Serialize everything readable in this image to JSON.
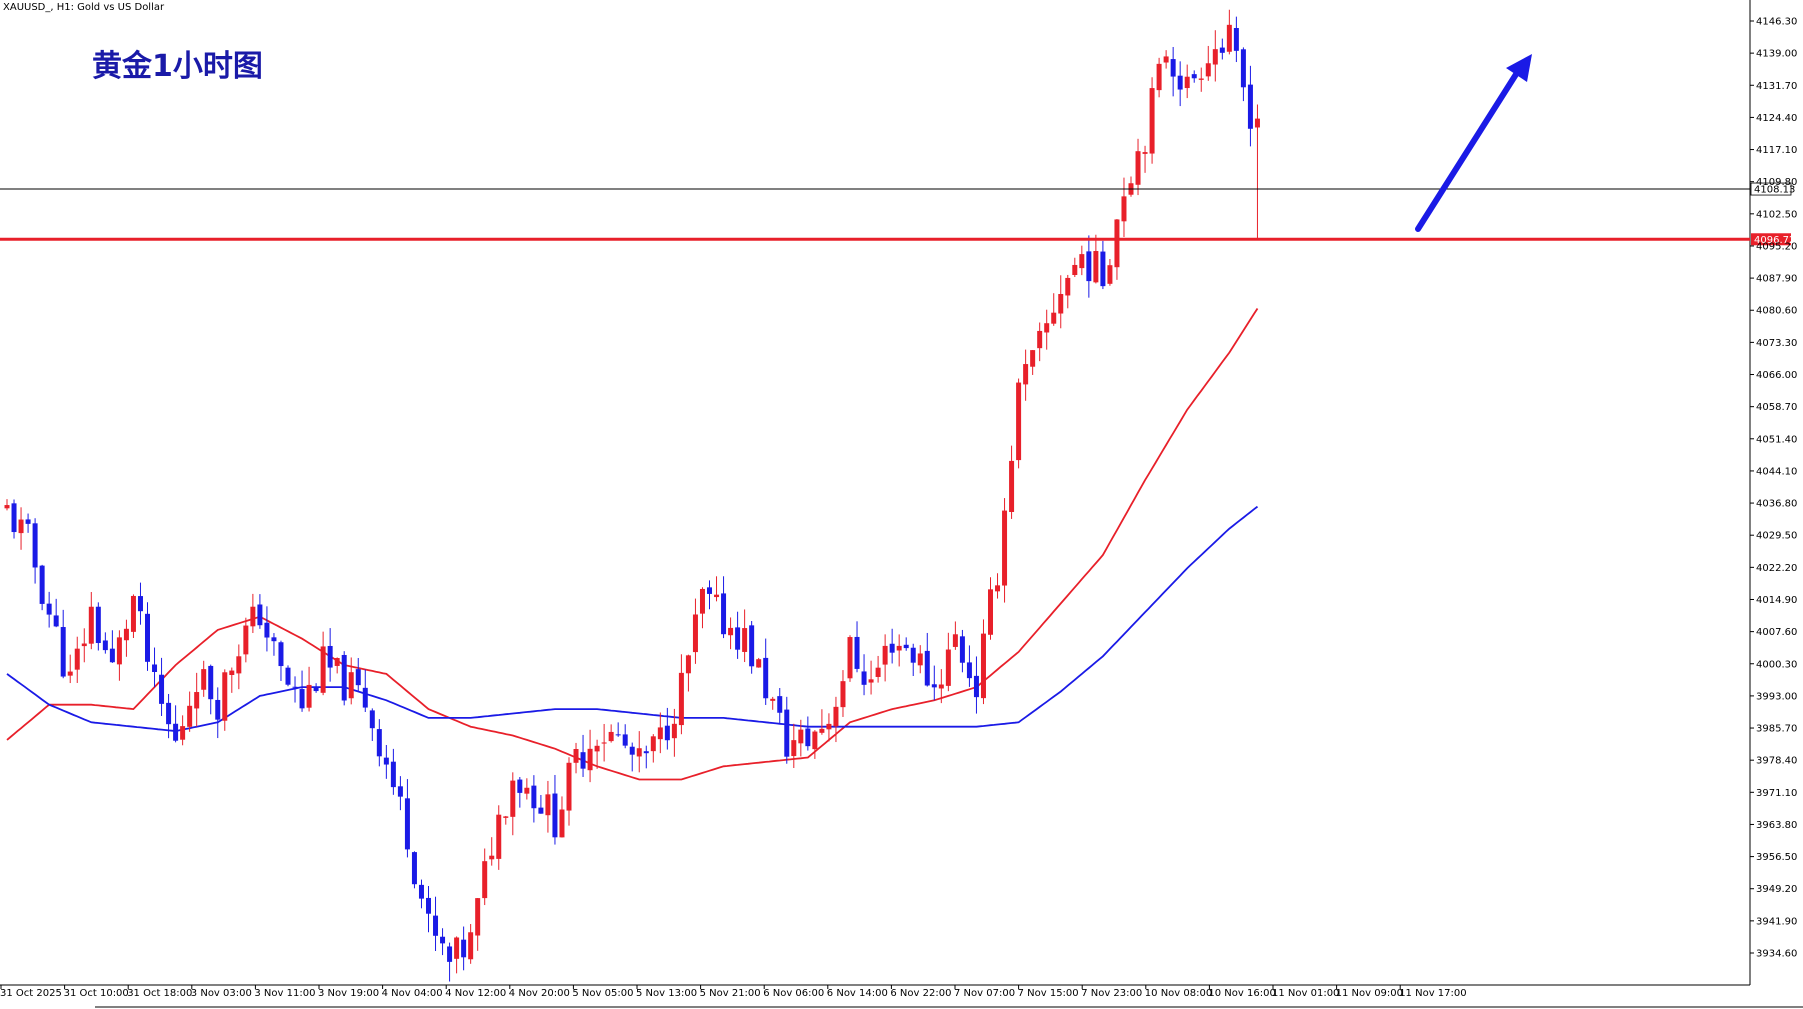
{
  "header": {
    "symbol_line": "XAUUSD_, H1:  Gold vs US Dollar",
    "chart_title": "黄金1小时图"
  },
  "colors": {
    "bull_candle": "#e8202a",
    "bear_candle": "#1a1ae6",
    "ma_fast": "#e8202a",
    "ma_slow": "#1a1ae6",
    "support_line": "#e8202a",
    "current_line": "#000000",
    "arrow": "#1a1ae6",
    "title": "#1a1aa8"
  },
  "chart_data": {
    "type": "candlestick",
    "timeframe": "H1",
    "ylim": [
      3929.0,
      4150.5
    ],
    "yticks": [
      "4146.30",
      "4139.00",
      "4131.70",
      "4124.40",
      "4117.10",
      "4109.80",
      "4102.50",
      "4095.20",
      "4087.90",
      "4080.60",
      "4073.30",
      "4066.00",
      "4058.70",
      "4051.40",
      "4044.10",
      "4036.80",
      "4029.50",
      "4022.20",
      "4014.90",
      "4007.60",
      "4000.30",
      "3993.00",
      "3985.70",
      "3978.40",
      "3971.10",
      "3963.80",
      "3956.50",
      "3949.20",
      "3941.90",
      "3934.60"
    ],
    "xticks": [
      "31 Oct 2025",
      "31 Oct 10:00",
      "31 Oct 18:00",
      "3 Nov 03:00",
      "3 Nov 11:00",
      "3 Nov 19:00",
      "4 Nov 04:00",
      "4 Nov 12:00",
      "4 Nov 20:00",
      "5 Nov 05:00",
      "5 Nov 13:00",
      "5 Nov 21:00",
      "6 Nov 06:00",
      "6 Nov 14:00",
      "6 Nov 22:00",
      "7 Nov 07:00",
      "7 Nov 15:00",
      "7 Nov 23:00",
      "10 Nov 08:00",
      "10 Nov 16:00",
      "11 Nov 01:00",
      "11 Nov 09:00",
      "11 Nov 17:00"
    ],
    "current_price": "4108.13",
    "support_price": "4096.72",
    "support_value": 4096.72,
    "current_value": 4108.13,
    "close_path": [
      [
        0,
        4035
      ],
      [
        3,
        4028
      ],
      [
        6,
        4012
      ],
      [
        9,
        3996
      ],
      [
        12,
        4012
      ],
      [
        15,
        3999
      ],
      [
        18,
        4015
      ],
      [
        21,
        3994
      ],
      [
        24,
        3982
      ],
      [
        27,
        3998
      ],
      [
        30,
        3992
      ],
      [
        33,
        4005
      ],
      [
        36,
        4012
      ],
      [
        39,
        3998
      ],
      [
        42,
        3991
      ],
      [
        45,
        4000
      ],
      [
        48,
        3996
      ],
      [
        51,
        3992
      ],
      [
        54,
        3978
      ],
      [
        57,
        3962
      ],
      [
        60,
        3940
      ],
      [
        63,
        3932
      ],
      [
        66,
        3937
      ],
      [
        69,
        3960
      ],
      [
        72,
        3975
      ],
      [
        75,
        3971
      ],
      [
        78,
        3965
      ],
      [
        81,
        3978
      ],
      [
        84,
        3985
      ],
      [
        87,
        3983
      ],
      [
        90,
        3977
      ],
      [
        93,
        3983
      ],
      [
        96,
        3995
      ],
      [
        99,
        4015
      ],
      [
        102,
        4010
      ],
      [
        105,
        4006
      ],
      [
        108,
        3995
      ],
      [
        111,
        3982
      ],
      [
        114,
        3983
      ],
      [
        117,
        3988
      ],
      [
        120,
        4003
      ],
      [
        123,
        3996
      ],
      [
        126,
        4006
      ],
      [
        129,
        4003
      ],
      [
        132,
        3995
      ],
      [
        135,
        4006
      ],
      [
        138,
        3995
      ],
      [
        141,
        4022
      ],
      [
        144,
        4062
      ],
      [
        147,
        4072
      ],
      [
        150,
        4086
      ],
      [
        153,
        4093
      ],
      [
        156,
        4088
      ],
      [
        159,
        4109
      ],
      [
        162,
        4121
      ],
      [
        165,
        4140
      ],
      [
        168,
        4131
      ],
      [
        171,
        4140
      ],
      [
        174,
        4141
      ],
      [
        177,
        4126
      ],
      [
        178,
        4108
      ]
    ],
    "ma_fast_values": [
      [
        0,
        3983
      ],
      [
        6,
        3991
      ],
      [
        12,
        3991
      ],
      [
        18,
        3990
      ],
      [
        24,
        4000
      ],
      [
        30,
        4008
      ],
      [
        36,
        4011
      ],
      [
        42,
        4006
      ],
      [
        48,
        4000
      ],
      [
        54,
        3998
      ],
      [
        60,
        3990
      ],
      [
        66,
        3986
      ],
      [
        72,
        3984
      ],
      [
        78,
        3981
      ],
      [
        84,
        3977
      ],
      [
        90,
        3974
      ],
      [
        96,
        3974
      ],
      [
        102,
        3977
      ],
      [
        108,
        3978
      ],
      [
        114,
        3979
      ],
      [
        120,
        3987
      ],
      [
        126,
        3990
      ],
      [
        132,
        3992
      ],
      [
        138,
        3995
      ],
      [
        144,
        4003
      ],
      [
        150,
        4014
      ],
      [
        156,
        4025
      ],
      [
        162,
        4042
      ],
      [
        168,
        4058
      ],
      [
        174,
        4071
      ],
      [
        178,
        4081
      ]
    ],
    "ma_slow_values": [
      [
        0,
        3998
      ],
      [
        6,
        3991
      ],
      [
        12,
        3987
      ],
      [
        18,
        3986
      ],
      [
        24,
        3985
      ],
      [
        30,
        3987
      ],
      [
        36,
        3993
      ],
      [
        42,
        3995
      ],
      [
        48,
        3995
      ],
      [
        54,
        3992
      ],
      [
        60,
        3988
      ],
      [
        66,
        3988
      ],
      [
        72,
        3989
      ],
      [
        78,
        3990
      ],
      [
        84,
        3990
      ],
      [
        90,
        3989
      ],
      [
        96,
        3988
      ],
      [
        102,
        3988
      ],
      [
        108,
        3987
      ],
      [
        114,
        3986
      ],
      [
        120,
        3986
      ],
      [
        126,
        3986
      ],
      [
        132,
        3986
      ],
      [
        138,
        3986
      ],
      [
        144,
        3987
      ],
      [
        150,
        3994
      ],
      [
        156,
        4002
      ],
      [
        162,
        4012
      ],
      [
        168,
        4022
      ],
      [
        174,
        4031
      ],
      [
        178,
        4036
      ]
    ]
  }
}
